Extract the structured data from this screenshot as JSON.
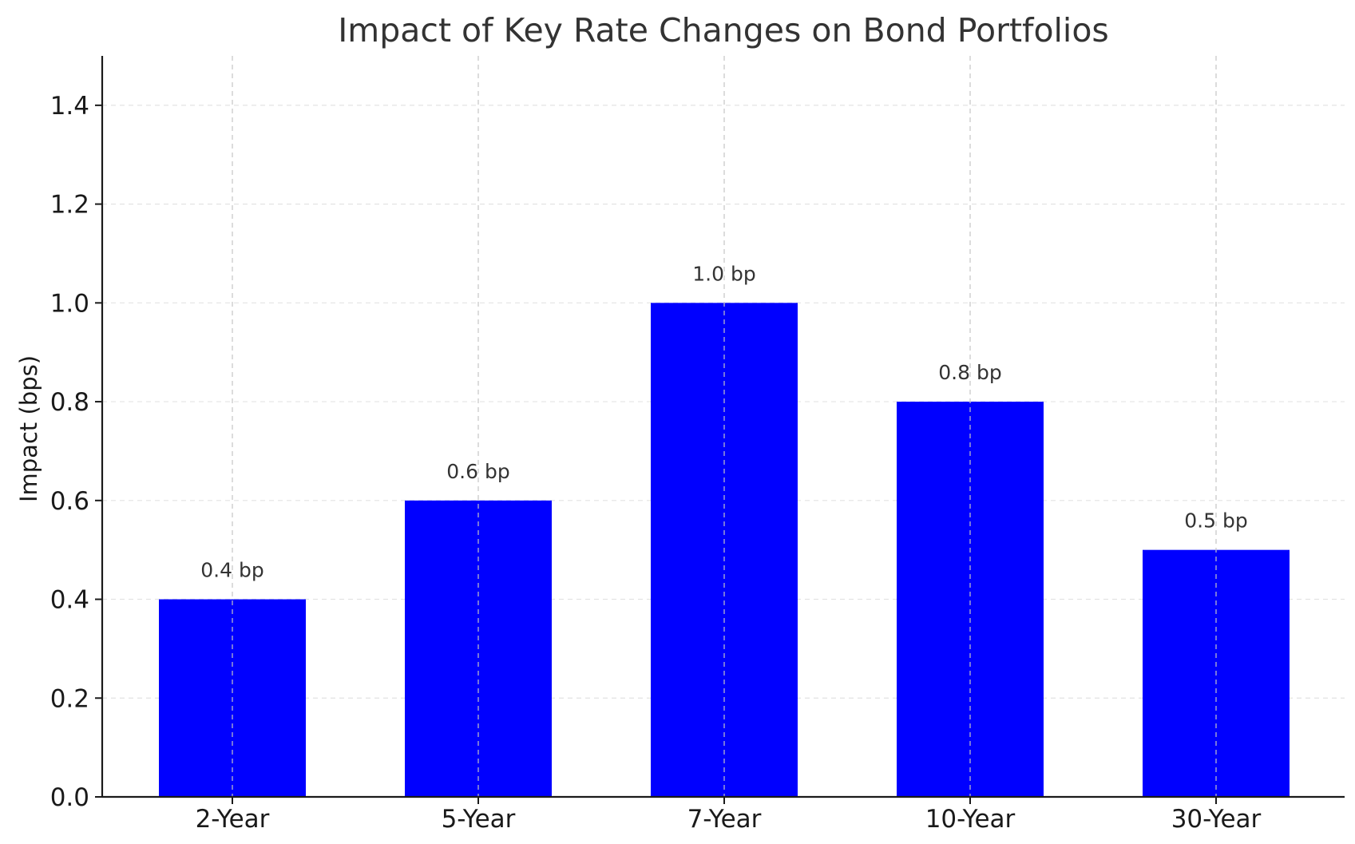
{
  "chart_data": {
    "type": "bar",
    "title": "Impact of Key Rate Changes on Bond Portfolios",
    "xlabel": "",
    "ylabel": "Impact (bps)",
    "categories": [
      "2-Year",
      "5-Year",
      "7-Year",
      "10-Year",
      "30-Year"
    ],
    "values": [
      0.4,
      0.6,
      1.0,
      0.8,
      0.5
    ],
    "data_labels": [
      "0.4 bp",
      "0.6 bp",
      "1.0 bp",
      "0.8 bp",
      "0.5 bp"
    ],
    "ylim": [
      0,
      1.5
    ],
    "yticks": [
      0.0,
      0.2,
      0.4,
      0.6,
      0.8,
      1.0,
      1.2,
      1.4
    ],
    "ytick_labels": [
      "0.0",
      "0.2",
      "0.4",
      "0.6",
      "0.8",
      "1.0",
      "1.2",
      "1.4"
    ],
    "bar_color": "#0000ff",
    "grid": true,
    "legend": "none"
  }
}
